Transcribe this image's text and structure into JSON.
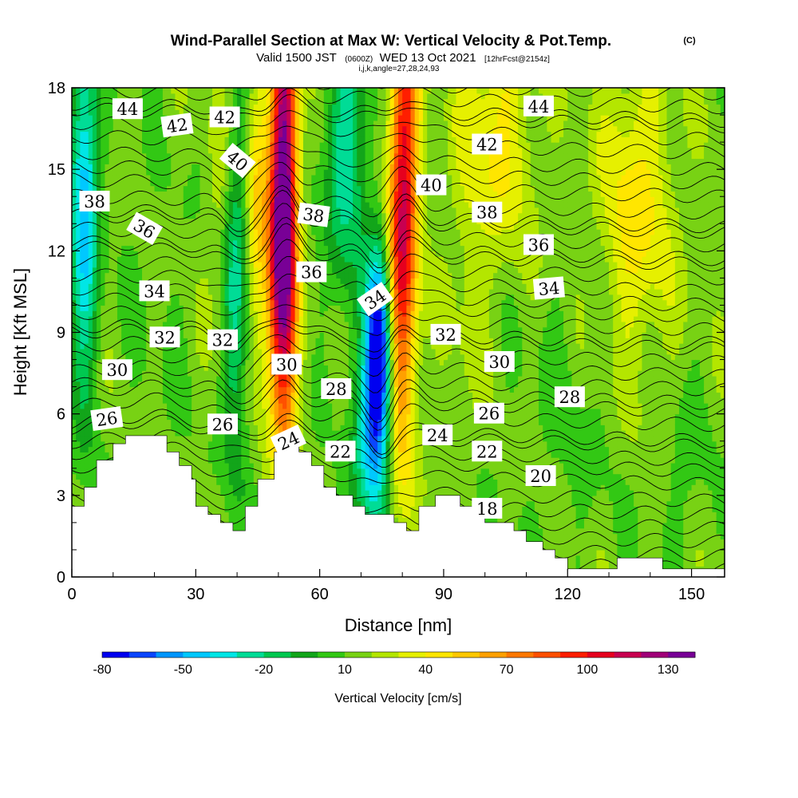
{
  "title": "Wind-Parallel Section at Max W: Vertical Velocity & Pot.Temp.",
  "copyright": "(C)",
  "subtitle": {
    "valid": "Valid 1500 JST",
    "utc": "(0600Z)",
    "date": "WED 13 Oct 2021",
    "forecast": "[12hrFcst@2154z]"
  },
  "params_line": "i,j,k,angle=27,28,24,93",
  "chart_data": {
    "type": "heatmap",
    "xlabel": "Distance [nm]",
    "ylabel": "Height [Kft MSL]",
    "xlim": [
      0,
      158
    ],
    "ylim": [
      0,
      18
    ],
    "xticks": [
      {
        "v": 0,
        "label": "0"
      },
      {
        "v": 30,
        "label": "30"
      },
      {
        "v": 60,
        "label": "60"
      },
      {
        "v": 90,
        "label": "90"
      },
      {
        "v": 120,
        "label": "120"
      },
      {
        "v": 150,
        "label": "150"
      }
    ],
    "yticks": [
      {
        "v": 0,
        "label": "0"
      },
      {
        "v": 3,
        "label": "3"
      },
      {
        "v": 6,
        "label": "6"
      },
      {
        "v": 9,
        "label": "9"
      },
      {
        "v": 12,
        "label": "12"
      },
      {
        "v": 15,
        "label": "15"
      },
      {
        "v": 18,
        "label": "18"
      }
    ],
    "colorbar": {
      "label": "Vertical Velocity [cm/s]",
      "min": -80,
      "max": 140,
      "step": 10,
      "colors": [
        "#0000f0",
        "#0a46ff",
        "#0096ff",
        "#00c8ff",
        "#00e6e6",
        "#00dc96",
        "#00c850",
        "#12a51a",
        "#32c814",
        "#78d214",
        "#b4e600",
        "#e6f000",
        "#ffe600",
        "#ffc800",
        "#ffa000",
        "#ff7800",
        "#ff5000",
        "#ff1e00",
        "#e6001e",
        "#c80050",
        "#a00078",
        "#780096"
      ],
      "tick_values": [
        -80,
        -50,
        -20,
        10,
        40,
        70,
        100,
        130
      ],
      "tick_labels": [
        "-80",
        "-50",
        "-20",
        "10",
        "40",
        "70",
        "100",
        "130"
      ]
    },
    "terrain": [
      [
        0,
        2.6
      ],
      [
        3,
        2.6
      ],
      [
        3,
        3.3
      ],
      [
        6,
        3.3
      ],
      [
        6,
        4.3
      ],
      [
        10,
        4.3
      ],
      [
        10,
        4.9
      ],
      [
        13,
        4.9
      ],
      [
        13,
        5.2
      ],
      [
        23,
        5.2
      ],
      [
        23,
        4.6
      ],
      [
        26,
        4.6
      ],
      [
        26,
        4.1
      ],
      [
        29,
        4.1
      ],
      [
        29,
        3.6
      ],
      [
        30,
        3.6
      ],
      [
        30,
        2.6
      ],
      [
        33,
        2.6
      ],
      [
        33,
        2.3
      ],
      [
        36,
        2.3
      ],
      [
        36,
        2.0
      ],
      [
        39,
        2.0
      ],
      [
        39,
        1.7
      ],
      [
        42,
        1.7
      ],
      [
        42,
        2.6
      ],
      [
        45,
        2.6
      ],
      [
        45,
        3.6
      ],
      [
        49,
        3.6
      ],
      [
        49,
        4.6
      ],
      [
        52,
        4.6
      ],
      [
        52,
        5.2
      ],
      [
        55,
        5.2
      ],
      [
        55,
        4.6
      ],
      [
        58,
        4.6
      ],
      [
        58,
        4.1
      ],
      [
        61,
        4.1
      ],
      [
        61,
        3.3
      ],
      [
        64,
        3.3
      ],
      [
        64,
        3.0
      ],
      [
        68,
        3.0
      ],
      [
        68,
        2.6
      ],
      [
        71,
        2.6
      ],
      [
        71,
        2.3
      ],
      [
        78,
        2.3
      ],
      [
        78,
        2.0
      ],
      [
        81,
        2.0
      ],
      [
        81,
        1.7
      ],
      [
        84,
        1.7
      ],
      [
        84,
        2.6
      ],
      [
        88,
        2.6
      ],
      [
        88,
        3.0
      ],
      [
        94,
        3.0
      ],
      [
        94,
        2.6
      ],
      [
        97,
        2.6
      ],
      [
        97,
        2.3
      ],
      [
        100,
        2.3
      ],
      [
        100,
        2.0
      ],
      [
        107,
        2.0
      ],
      [
        107,
        1.7
      ],
      [
        110,
        1.7
      ],
      [
        110,
        1.3
      ],
      [
        114,
        1.3
      ],
      [
        114,
        1.0
      ],
      [
        117,
        1.0
      ],
      [
        117,
        0.7
      ],
      [
        120,
        0.7
      ],
      [
        120,
        0.3
      ],
      [
        132,
        0.3
      ],
      [
        132,
        0.7
      ],
      [
        143,
        0.7
      ],
      [
        143,
        0.3
      ],
      [
        158,
        0.3
      ]
    ],
    "velocity_field": {
      "note": "w [cm/s] = background + sum of gaussian cores (x in nm, z in kft)",
      "background": 14,
      "cores": [
        {
          "x": 51.5,
          "z": 14.5,
          "sx": 2.2,
          "sz": 6.5,
          "amp": 118
        },
        {
          "x": 49.5,
          "z": 11.0,
          "sx": 2.5,
          "sz": 3.5,
          "amp": 50
        },
        {
          "x": 80.5,
          "z": 15.0,
          "sx": 2.5,
          "sz": 6.0,
          "amp": 85
        },
        {
          "x": 79.0,
          "z": 9.0,
          "sx": 2.2,
          "sz": 4.5,
          "amp": 32
        },
        {
          "x": 74.5,
          "z": 8.5,
          "sx": 2.2,
          "sz": 2.6,
          "amp": -92
        },
        {
          "x": 72.5,
          "z": 5.0,
          "sx": 3.0,
          "sz": 2.6,
          "amp": -52
        },
        {
          "x": 66.5,
          "z": 15.5,
          "sx": 3.5,
          "sz": 3.5,
          "amp": -42
        },
        {
          "x": 39.5,
          "z": 11.0,
          "sx": 2.4,
          "sz": 5.0,
          "amp": -40
        },
        {
          "x": 3.0,
          "z": 14.0,
          "sx": 2.4,
          "sz": 5.0,
          "amp": -60
        },
        {
          "x": 44.5,
          "z": 14.5,
          "sx": 1.8,
          "sz": 3.5,
          "amp": 34
        },
        {
          "x": 36.5,
          "z": 14.0,
          "sx": 2.2,
          "sz": 4.0,
          "amp": 18
        },
        {
          "x": 103.0,
          "z": 16.5,
          "sx": 6.5,
          "sz": 3.5,
          "amp": 28
        },
        {
          "x": 136.5,
          "z": 13.5,
          "sx": 6.5,
          "sz": 4.0,
          "amp": 30
        },
        {
          "x": 95.0,
          "z": 10.0,
          "sx": 3.0,
          "sz": 4.5,
          "amp": 8
        },
        {
          "x": 120.0,
          "z": 6.5,
          "sx": 10.0,
          "sz": 4.0,
          "amp": -6
        },
        {
          "x": 148.0,
          "z": 3.5,
          "sx": 4.0,
          "sz": 2.5,
          "amp": -8
        },
        {
          "x": 20.0,
          "z": 9.0,
          "sx": 6.0,
          "sz": 5.0,
          "amp": -4
        }
      ]
    },
    "isentropes": {
      "note": "potential temperature contour levels (°C) with base heights in kft and bends (dx nm, dz kft)",
      "levels": [
        {
          "theta": 18,
          "z": 2.6
        },
        {
          "theta": 20,
          "z": 3.7
        },
        {
          "theta": 22,
          "z": 4.6
        },
        {
          "theta": 24,
          "z": 5.3
        },
        {
          "theta": 26,
          "z": 5.9
        },
        {
          "theta": 28,
          "z": 6.7
        },
        {
          "theta": 30,
          "z": 7.7
        },
        {
          "theta": 32,
          "z": 8.9
        },
        {
          "theta": 34,
          "z": 10.3
        },
        {
          "theta": 36,
          "z": 12.0
        },
        {
          "theta": 38,
          "z": 13.2
        },
        {
          "theta": 40,
          "z": 14.3
        },
        {
          "theta": 42,
          "z": 15.9
        },
        {
          "theta": 44,
          "z": 17.1
        }
      ],
      "spacing_between_labeled": 0.5
    },
    "contour_labels": [
      {
        "text": "44",
        "x": 13.5,
        "z": 17.2,
        "angle": 0
      },
      {
        "text": "42",
        "x": 25.5,
        "z": 16.6,
        "angle": -8
      },
      {
        "text": "42",
        "x": 37.0,
        "z": 16.9,
        "angle": 0
      },
      {
        "text": "40",
        "x": 40.0,
        "z": 15.3,
        "angle": 40
      },
      {
        "text": "38",
        "x": 5.5,
        "z": 13.8,
        "angle": 0
      },
      {
        "text": "36",
        "x": 17.5,
        "z": 12.8,
        "angle": 30
      },
      {
        "text": "34",
        "x": 20.0,
        "z": 10.5,
        "angle": 0
      },
      {
        "text": "32",
        "x": 22.5,
        "z": 8.8,
        "angle": 0
      },
      {
        "text": "30",
        "x": 11.0,
        "z": 7.6,
        "angle": 0
      },
      {
        "text": "26",
        "x": 8.5,
        "z": 5.8,
        "angle": -8
      },
      {
        "text": "32",
        "x": 36.5,
        "z": 8.7,
        "angle": 0
      },
      {
        "text": "26",
        "x": 36.5,
        "z": 5.6,
        "angle": 0
      },
      {
        "text": "38",
        "x": 58.5,
        "z": 13.3,
        "angle": 8
      },
      {
        "text": "36",
        "x": 58.0,
        "z": 11.2,
        "angle": 0
      },
      {
        "text": "30",
        "x": 52.0,
        "z": 7.8,
        "angle": 0
      },
      {
        "text": "24",
        "x": 52.5,
        "z": 5.0,
        "angle": -25
      },
      {
        "text": "28",
        "x": 64.0,
        "z": 6.9,
        "angle": 0
      },
      {
        "text": "22",
        "x": 65.0,
        "z": 4.6,
        "angle": 0
      },
      {
        "text": "34",
        "x": 73.5,
        "z": 10.2,
        "angle": -35
      },
      {
        "text": "42",
        "x": 100.5,
        "z": 15.9,
        "angle": 0
      },
      {
        "text": "44",
        "x": 113.0,
        "z": 17.3,
        "angle": 0
      },
      {
        "text": "40",
        "x": 87.0,
        "z": 14.4,
        "angle": 0
      },
      {
        "text": "38",
        "x": 100.5,
        "z": 13.4,
        "angle": 0
      },
      {
        "text": "36",
        "x": 113.0,
        "z": 12.2,
        "angle": 0
      },
      {
        "text": "34",
        "x": 115.5,
        "z": 10.6,
        "angle": -5
      },
      {
        "text": "32",
        "x": 90.5,
        "z": 8.9,
        "angle": 0
      },
      {
        "text": "30",
        "x": 103.5,
        "z": 7.9,
        "angle": 0
      },
      {
        "text": "28",
        "x": 120.5,
        "z": 6.6,
        "angle": 0
      },
      {
        "text": "26",
        "x": 101.0,
        "z": 6.0,
        "angle": 0
      },
      {
        "text": "24",
        "x": 88.5,
        "z": 5.2,
        "angle": 0
      },
      {
        "text": "22",
        "x": 100.5,
        "z": 4.6,
        "angle": 0
      },
      {
        "text": "20",
        "x": 113.5,
        "z": 3.7,
        "angle": 0
      },
      {
        "text": "18",
        "x": 100.5,
        "z": 2.5,
        "angle": 0
      }
    ]
  }
}
